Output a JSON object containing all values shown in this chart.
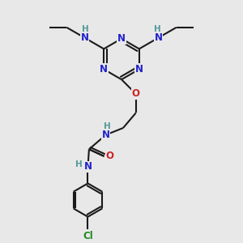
{
  "bg_color": "#e8e8e8",
  "bond_color": "#1a1a1a",
  "N_color": "#2222cc",
  "O_color": "#cc2222",
  "Cl_color": "#228822",
  "H_color": "#559999",
  "line_width": 1.5,
  "fig_size": [
    3.0,
    3.0
  ],
  "dpi": 100,
  "xlim": [
    0,
    10
  ],
  "ylim": [
    0,
    10
  ]
}
